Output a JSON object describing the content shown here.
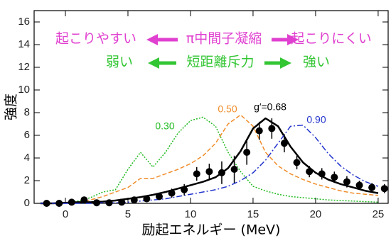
{
  "chart_data": {
    "type": "spectrum",
    "xlabel": "励起エネルギー (MeV)",
    "ylabel": "強度",
    "xlim": [
      -2.5,
      25.8
    ],
    "ylim": [
      0,
      17
    ],
    "xticks": [
      0,
      5,
      10,
      15,
      20,
      25
    ],
    "yticks": [
      0,
      2,
      4,
      6,
      8,
      10,
      12,
      14,
      16
    ],
    "annotations": [
      {
        "text": "起こりやすい",
        "color": "#e040d0"
      },
      {
        "text": "π中間子凝縮",
        "color": "#e040d0"
      },
      {
        "text": "起こりにくい",
        "color": "#e040d0"
      },
      {
        "text": "弱い",
        "color": "#33c633"
      },
      {
        "text": "短距離斥力",
        "color": "#33c633"
      },
      {
        "text": "強い",
        "color": "#33c633"
      }
    ],
    "points": {
      "color": "#000000",
      "x": [
        -1.5,
        -0.5,
        0.5,
        1.5,
        2.5,
        3.5,
        4.5,
        5.5,
        6.5,
        7.5,
        8.5,
        9.5,
        10.5,
        11.5,
        12.5,
        13.5,
        14.5,
        15.5,
        16.5,
        17.5,
        18.5,
        19.5,
        20.5,
        21.5,
        22.5,
        23.5,
        24.5,
        25.5
      ],
      "values": [
        0,
        0,
        0.1,
        0.3,
        0.05,
        0.05,
        0.1,
        0.3,
        0.4,
        0.6,
        0.9,
        1.2,
        2.6,
        2.8,
        2.7,
        3.0,
        4.5,
        6.4,
        6.6,
        5.3,
        3.6,
        2.8,
        2.6,
        2.3,
        1.9,
        1.6,
        1.4,
        1.3
      ],
      "errors": [
        0.15,
        0.15,
        0.2,
        0.3,
        0.2,
        0.2,
        0.2,
        0.3,
        0.3,
        0.3,
        0.4,
        0.5,
        0.6,
        0.7,
        1.0,
        1.2,
        1.1,
        0.8,
        0.9,
        0.8,
        0.6,
        0.5,
        0.5,
        0.5,
        0.5,
        0.4,
        0.4,
        0.4
      ]
    },
    "curve_x": [
      -2,
      -1,
      0,
      1,
      2,
      3,
      4,
      5,
      6,
      7,
      8,
      9,
      10,
      11,
      12,
      13,
      14,
      15,
      16,
      17,
      18,
      19,
      20,
      21,
      22,
      23,
      24,
      25
    ],
    "curves": [
      {
        "label": "0.30",
        "color": "#22bb22",
        "style": "dotted",
        "values": [
          0,
          0,
          0.05,
          0.2,
          0.5,
          1.0,
          1.2,
          3.0,
          4.5,
          3.2,
          4.5,
          6.2,
          7.3,
          7.6,
          6.8,
          4.5,
          2.8,
          1.5,
          1.1,
          0.8,
          0.6,
          0.5,
          0.4,
          0.3,
          0.25,
          0.2,
          0.15,
          0.1
        ]
      },
      {
        "label": "0.50",
        "color": "#f08c28",
        "style": "dashed",
        "values": [
          0,
          0,
          0.05,
          0.1,
          0.3,
          0.6,
          1.0,
          1.4,
          2.2,
          2.2,
          2.6,
          3.0,
          3.5,
          4.2,
          5.3,
          7.0,
          7.8,
          6.8,
          4.5,
          3.3,
          2.6,
          2.1,
          1.7,
          1.4,
          1.1,
          0.9,
          0.8,
          0.7
        ]
      },
      {
        "label": "g′=0.68",
        "color": "#000000",
        "style": "solid",
        "values": [
          0,
          0,
          0.05,
          0.1,
          0.1,
          0.15,
          0.25,
          0.4,
          0.55,
          0.75,
          1.0,
          1.3,
          1.6,
          1.9,
          2.3,
          3.1,
          4.6,
          6.6,
          7.5,
          6.8,
          5.0,
          3.6,
          2.7,
          2.1,
          1.7,
          1.4,
          1.1,
          0.9
        ]
      },
      {
        "label": "0.90",
        "color": "#2233cc",
        "style": "dashdot",
        "values": [
          0,
          0,
          0,
          0,
          0,
          0.05,
          0.05,
          0.1,
          0.2,
          0.3,
          0.4,
          0.6,
          0.8,
          1.0,
          1.2,
          1.5,
          2.0,
          2.7,
          3.8,
          5.3,
          6.8,
          6.9,
          5.8,
          4.4,
          3.3,
          2.5,
          1.9,
          1.5
        ]
      }
    ]
  }
}
